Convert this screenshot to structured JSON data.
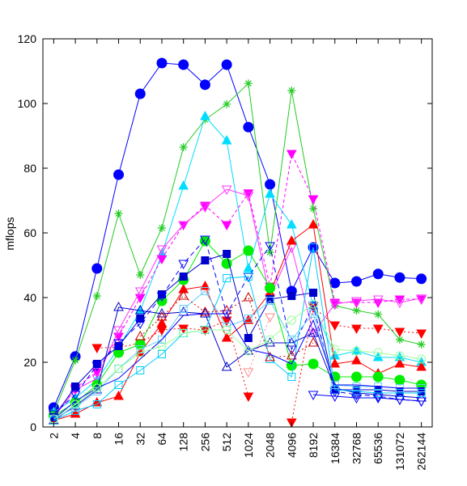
{
  "chart_data": {
    "type": "line",
    "title": "",
    "xlabel": "",
    "ylabel": "mflops",
    "ylim": [
      0,
      120
    ],
    "yticks": [
      0,
      20,
      40,
      60,
      80,
      100,
      120
    ],
    "categories": [
      "2",
      "4",
      "8",
      "16",
      "32",
      "64",
      "128",
      "256",
      "512",
      "1024",
      "2048",
      "4096",
      "8192",
      "16384",
      "32768",
      "65536",
      "131072",
      "262144"
    ],
    "grid": false,
    "legend": "none",
    "series": [
      {
        "color": "#0000ff",
        "dash": "",
        "marker": "circle",
        "fill": true,
        "values": [
          6,
          21.8,
          49,
          78,
          103,
          112.5,
          112,
          105.8,
          112,
          92.7,
          75,
          42,
          55.5,
          44.5,
          45,
          47.3,
          46.2,
          45.8
        ]
      },
      {
        "color": "#22cc22",
        "dash": "",
        "marker": "star",
        "fill": false,
        "values": [
          4.5,
          20.6,
          40.5,
          66,
          47,
          61.5,
          86.5,
          95,
          99.8,
          106.2,
          54,
          104,
          67.5,
          37.5,
          36,
          34.8,
          27,
          25.5
        ]
      },
      {
        "color": "#00ddff",
        "dash": "",
        "marker": "triangle",
        "fill": true,
        "values": [
          4.5,
          9,
          14.5,
          24.5,
          36,
          53.5,
          74.5,
          96,
          88.5,
          49,
          72,
          62.5,
          37.5,
          22,
          23.5,
          21.5,
          21.5,
          20
        ]
      },
      {
        "color": "#ff00ff",
        "dash": "4,3",
        "marker": "triangle-down",
        "fill": true,
        "values": [
          3.5,
          12,
          17,
          28,
          40,
          52,
          62.5,
          68.5,
          62.5,
          72.3,
          43.5,
          84.5,
          70.5,
          38.5,
          38.5,
          38.5,
          39.5,
          39.5
        ]
      },
      {
        "color": "#ff33ff",
        "dash": "",
        "marker": "triangle-down",
        "fill": false,
        "values": [
          3,
          11.5,
          15,
          30,
          42,
          55,
          62.5,
          68,
          73.5,
          71.5,
          40,
          55.5,
          29,
          38,
          39,
          39.5,
          38.5,
          39.8
        ]
      },
      {
        "color": "#ff0000",
        "dash": "",
        "marker": "triangle",
        "fill": true,
        "values": [
          2,
          4,
          7.5,
          9.5,
          23,
          32,
          42.5,
          43.5,
          27.5,
          33,
          41.5,
          57.5,
          62.5,
          19.5,
          20.5,
          16.5,
          19.5,
          18.5
        ]
      },
      {
        "color": "#ff0000",
        "dash": "2,3",
        "marker": "triangle-down",
        "fill": true,
        "values": [
          null,
          null,
          24.5,
          24.5,
          26,
          30,
          30.5,
          30,
          33,
          9.5,
          null,
          1.5,
          37,
          31.5,
          30.5,
          30.5,
          29.5,
          29
        ]
      },
      {
        "color": "#00ee00",
        "dash": "",
        "marker": "circle",
        "fill": true,
        "values": [
          3.5,
          7.5,
          13,
          23,
          25.5,
          39,
          45.5,
          57.5,
          50.5,
          54.5,
          43,
          19,
          19.5,
          15.5,
          15.5,
          15.5,
          14.5,
          13
        ]
      },
      {
        "color": "#0000cc",
        "dash": "",
        "marker": "square",
        "fill": true,
        "values": [
          3,
          12.5,
          19.5,
          25,
          33.5,
          41,
          46.5,
          51.5,
          53.5,
          27.5,
          39.5,
          40.5,
          41.5,
          11.5,
          11.5,
          11.5,
          11,
          11
        ]
      },
      {
        "color": "#0000ff",
        "dash": "6,4",
        "marker": "triangle-down",
        "fill": false,
        "values": [
          4,
          10,
          19,
          26,
          32,
          40.5,
          50.5,
          58,
          35,
          46.5,
          56,
          24,
          37.5,
          11,
          10,
          9.5,
          8.5,
          8
        ]
      },
      {
        "color": "#0000cc",
        "dash": "",
        "marker": "triangle",
        "fill": false,
        "values": [
          2,
          6.5,
          11.5,
          37,
          36,
          35,
          35.5,
          35,
          18.5,
          23.5,
          26,
          26,
          29,
          12,
          10.5,
          10,
          9.5,
          9
        ]
      },
      {
        "color": "#00ccff",
        "dash": "",
        "marker": "square",
        "fill": false,
        "values": [
          2,
          5,
          7,
          13,
          17.5,
          22.5,
          29,
          30,
          46,
          46.5,
          21,
          15.5,
          55.5,
          11.5,
          11,
          10.5,
          10.5,
          10.5
        ]
      },
      {
        "color": "#66ccff",
        "dash": "",
        "marker": "square",
        "fill": false,
        "values": [
          2.5,
          6,
          11,
          18,
          24,
          27,
          36.5,
          42,
          31,
          33.5,
          39,
          27,
          35,
          13,
          12.5,
          12.5,
          12,
          12
        ]
      },
      {
        "color": "#cc0000",
        "dash": "2,3",
        "marker": "triangle",
        "fill": false,
        "values": [
          null,
          null,
          null,
          null,
          28,
          34,
          40.5,
          35.5,
          36,
          40,
          21.5,
          22,
          26,
          null,
          null,
          null,
          null,
          null
        ]
      },
      {
        "color": "#0000ff",
        "dash": "",
        "marker": "none",
        "fill": false,
        "values": [
          2.5,
          8,
          12,
          15,
          21,
          27,
          34.5,
          35,
          35,
          24,
          22.5,
          19.5,
          33,
          13,
          13,
          12.5,
          12,
          12
        ]
      },
      {
        "color": "#99ff99",
        "dash": "",
        "marker": "circle",
        "fill": false,
        "values": [
          2.5,
          7,
          12,
          18,
          23,
          25,
          29,
          30,
          30,
          23.5,
          27,
          33,
          38,
          24,
          23.5,
          23,
          22,
          21
        ]
      },
      {
        "color": "#ff8888",
        "dash": "2,3",
        "marker": "triangle-down",
        "fill": false,
        "values": [
          null,
          null,
          null,
          null,
          null,
          null,
          null,
          null,
          null,
          17,
          34,
          null,
          null,
          null,
          null,
          null,
          null,
          null
        ]
      },
      {
        "color": "#0000ff",
        "dash": "",
        "marker": "triangle-down",
        "fill": false,
        "values": [
          null,
          null,
          null,
          null,
          null,
          null,
          null,
          null,
          null,
          null,
          null,
          null,
          10,
          9.5,
          9,
          9,
          8.5,
          8
        ]
      }
    ]
  }
}
